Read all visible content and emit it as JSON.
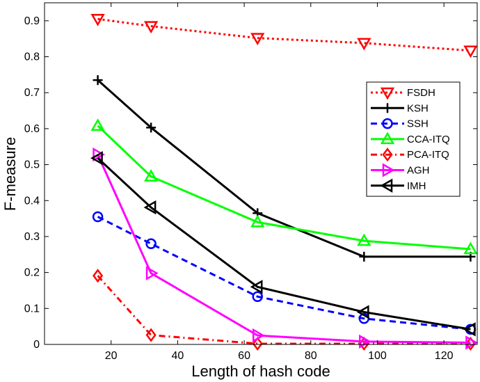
{
  "chart_data": {
    "type": "line",
    "xlabel": "Length of hash code",
    "ylabel": "F-measure",
    "xlim": [
      0,
      130
    ],
    "ylim": [
      0,
      0.95
    ],
    "xticks": [
      20,
      40,
      60,
      80,
      100,
      120
    ],
    "yticks": [
      0,
      0.1,
      0.2,
      0.3,
      0.4,
      0.5,
      0.6,
      0.7,
      0.8,
      0.9
    ],
    "xtick_labels": [
      "20",
      "40",
      "60",
      "80",
      "100",
      "120"
    ],
    "ytick_labels": [
      "0",
      "0.1",
      "0.2",
      "0.3",
      "0.4",
      "0.5",
      "0.6",
      "0.7",
      "0.8",
      "0.9"
    ],
    "x": [
      16,
      32,
      64,
      96,
      128
    ],
    "legend_position": "upper-right",
    "series": [
      {
        "name": "FSDH",
        "values": [
          0.905,
          0.885,
          0.852,
          0.838,
          0.817
        ],
        "color": "#ff0000",
        "dash": "dotted",
        "marker": "triangle-down"
      },
      {
        "name": "KSH",
        "values": [
          0.735,
          0.603,
          0.365,
          0.244,
          0.244
        ],
        "color": "#000000",
        "dash": "solid",
        "marker": "plus"
      },
      {
        "name": "SSH",
        "values": [
          0.355,
          0.28,
          0.133,
          0.072,
          0.042
        ],
        "color": "#0000ff",
        "dash": "dashed",
        "marker": "circle"
      },
      {
        "name": "CCA-ITQ",
        "values": [
          0.608,
          0.467,
          0.34,
          0.288,
          0.265
        ],
        "color": "#00ff00",
        "dash": "solid",
        "marker": "triangle-up"
      },
      {
        "name": "PCA-ITQ",
        "values": [
          0.191,
          0.026,
          0.002,
          0.002,
          0.002
        ],
        "color": "#ff0000",
        "dash": "dashdot",
        "marker": "diamond"
      },
      {
        "name": "AGH",
        "values": [
          0.528,
          0.198,
          0.025,
          0.008,
          0.005
        ],
        "color": "#ff00ff",
        "dash": "solid",
        "marker": "triangle-right"
      },
      {
        "name": "IMH",
        "values": [
          0.518,
          0.381,
          0.16,
          0.09,
          0.042
        ],
        "color": "#000000",
        "dash": "solid",
        "marker": "triangle-left"
      }
    ]
  }
}
